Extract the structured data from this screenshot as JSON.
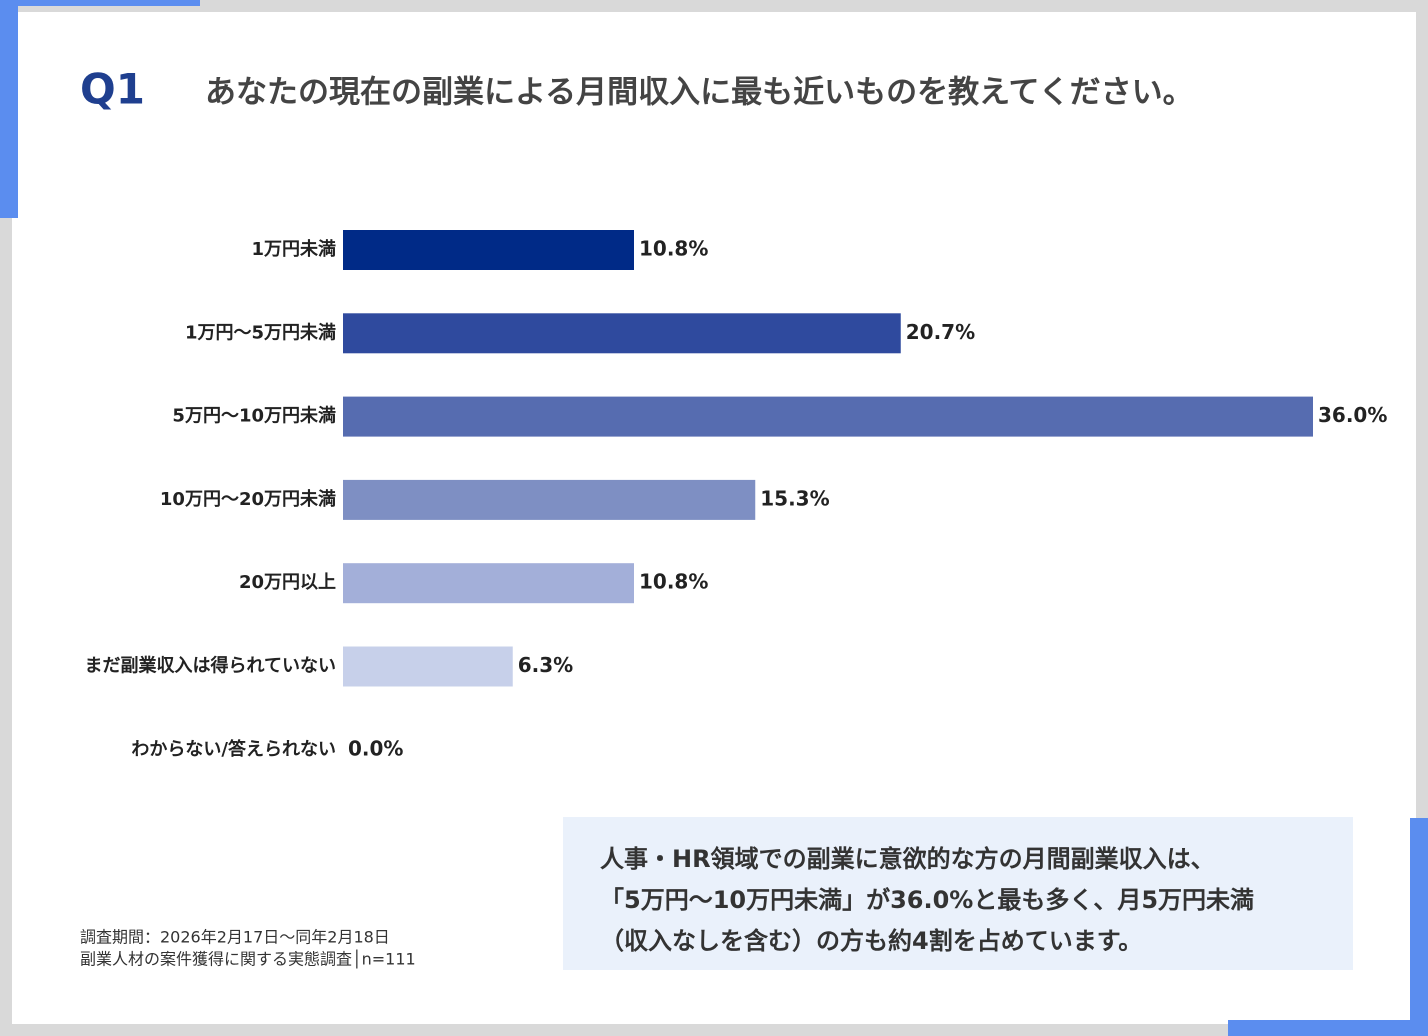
{
  "chart_data": {
    "type": "bar",
    "orientation": "horizontal",
    "label": "Q1",
    "title": "あなたの現在の副業による月間収入に最も近いものを教えてください。",
    "categories": [
      "1万円未満",
      "1万円〜5万円未満",
      "5万円〜10万円未満",
      "10万円〜20万円未満",
      "20万円以上",
      "まだ副業収入は得られていない",
      "わからない/答えられない"
    ],
    "values": [
      10.8,
      20.7,
      36.0,
      15.3,
      10.8,
      6.3,
      0.0
    ],
    "value_labels": [
      "10.8%",
      "20.7%",
      "36.0%",
      "15.3%",
      "10.8%",
      "6.3%",
      "0.0%"
    ],
    "colors": [
      "#002a87",
      "#2f4a9e",
      "#566cb0",
      "#7e8fc3",
      "#a3afd9",
      "#c7d0ea",
      "#dfe5f4"
    ],
    "grid": false,
    "summary": [
      "人事・HR領域での副業に意欲的な方の月間副業収入は、",
      "「5万円〜10万円未満」が36.0%と最も多く、月5万円未満",
      "（収入なしを含む）の方も約4割を占めています。"
    ],
    "footnotes": [
      "調査期間：2026年2月17日〜同年2月18日",
      "副業人材の案件獲得に関する実態調査│n=111"
    ]
  }
}
